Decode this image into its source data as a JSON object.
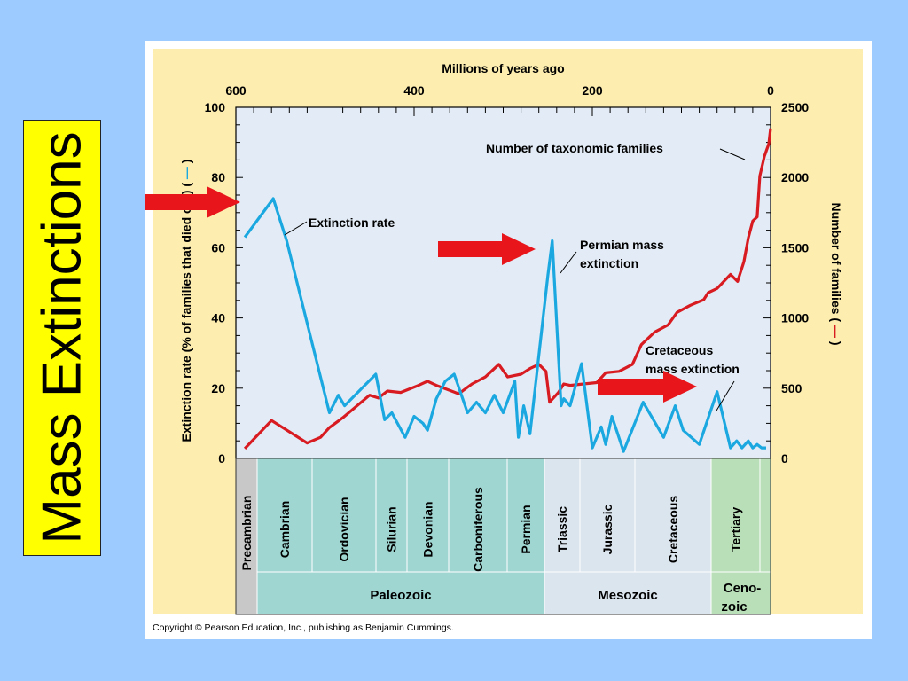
{
  "slide": {
    "title": "Mass Extinctions",
    "copyright": "Copyright © Pearson Education, Inc., publishing as Benjamin Cummings."
  },
  "chart_data": {
    "type": "line",
    "top_axis_label": "Millions of years ago",
    "x_ticks": [
      600,
      400,
      200,
      0
    ],
    "xlim": [
      600,
      0
    ],
    "ylabel_left": "Extinction rate (% of families that died out) (",
    "ylabel_right": "Number of families (",
    "ylim_left": [
      0,
      100
    ],
    "ylim_right": [
      0,
      2500
    ],
    "left_ticks": [
      0,
      20,
      40,
      60,
      80,
      100
    ],
    "right_ticks": [
      0,
      500,
      1000,
      1500,
      2000,
      2500
    ],
    "series": [
      {
        "name": "Extinction rate",
        "axis": "left",
        "color": "#1ba8e0",
        "points": [
          [
            590,
            63
          ],
          [
            558,
            74
          ],
          [
            543,
            62
          ],
          [
            495,
            13
          ],
          [
            485,
            18
          ],
          [
            478,
            15
          ],
          [
            443,
            24
          ],
          [
            433,
            11
          ],
          [
            425,
            13
          ],
          [
            410,
            6
          ],
          [
            400,
            12
          ],
          [
            390,
            10
          ],
          [
            385,
            8
          ],
          [
            375,
            17
          ],
          [
            365,
            22
          ],
          [
            355,
            24
          ],
          [
            340,
            13
          ],
          [
            330,
            16
          ],
          [
            320,
            13
          ],
          [
            310,
            18
          ],
          [
            300,
            13
          ],
          [
            287,
            22
          ],
          [
            283,
            6
          ],
          [
            277,
            15
          ],
          [
            270,
            7
          ],
          [
            250,
            52
          ],
          [
            245,
            62
          ],
          [
            235,
            15
          ],
          [
            232,
            17
          ],
          [
            225,
            15
          ],
          [
            212,
            27
          ],
          [
            200,
            3
          ],
          [
            190,
            9
          ],
          [
            185,
            4
          ],
          [
            178,
            12
          ],
          [
            165,
            2
          ],
          [
            143,
            16
          ],
          [
            120,
            6
          ],
          [
            107,
            15
          ],
          [
            98,
            8
          ],
          [
            80,
            4
          ],
          [
            60,
            19
          ],
          [
            45,
            3
          ],
          [
            38,
            5
          ],
          [
            32,
            3
          ],
          [
            25,
            5
          ],
          [
            20,
            3
          ],
          [
            15,
            4
          ],
          [
            10,
            3
          ],
          [
            5,
            3
          ]
        ]
      },
      {
        "name": "Number of taxonomic families",
        "axis": "right",
        "color": "#d81b21",
        "points": [
          [
            590,
            70
          ],
          [
            560,
            270
          ],
          [
            520,
            110
          ],
          [
            505,
            150
          ],
          [
            495,
            220
          ],
          [
            480,
            290
          ],
          [
            450,
            450
          ],
          [
            440,
            430
          ],
          [
            430,
            480
          ],
          [
            415,
            470
          ],
          [
            395,
            520
          ],
          [
            385,
            550
          ],
          [
            375,
            520
          ],
          [
            350,
            460
          ],
          [
            335,
            530
          ],
          [
            320,
            580
          ],
          [
            305,
            670
          ],
          [
            295,
            580
          ],
          [
            280,
            600
          ],
          [
            270,
            640
          ],
          [
            260,
            670
          ],
          [
            252,
            620
          ],
          [
            248,
            400
          ],
          [
            238,
            470
          ],
          [
            232,
            530
          ],
          [
            225,
            520
          ],
          [
            210,
            530
          ],
          [
            195,
            540
          ],
          [
            185,
            610
          ],
          [
            170,
            620
          ],
          [
            155,
            670
          ],
          [
            145,
            810
          ],
          [
            130,
            900
          ],
          [
            115,
            950
          ],
          [
            105,
            1040
          ],
          [
            90,
            1090
          ],
          [
            75,
            1130
          ],
          [
            70,
            1180
          ],
          [
            60,
            1210
          ],
          [
            45,
            1310
          ],
          [
            37,
            1260
          ],
          [
            30,
            1400
          ],
          [
            25,
            1570
          ],
          [
            20,
            1690
          ],
          [
            15,
            1720
          ],
          [
            12,
            2010
          ],
          [
            7,
            2150
          ],
          [
            2,
            2240
          ],
          [
            0,
            2350
          ]
        ]
      }
    ],
    "annotations": [
      {
        "text": "Extinction rate",
        "color": "#1ba8e0"
      },
      {
        "text": "Number of taxonomic families",
        "color": "#d81b21"
      },
      {
        "text": "Permian mass",
        "text2": "extinction"
      },
      {
        "text": "Cretaceous",
        "text2": "mass extinction"
      }
    ],
    "periods": [
      "Precambrian",
      "Cambrian",
      "Ordovician",
      "Silurian",
      "Devonian",
      "Carboniferous",
      "Permian",
      "Triassic",
      "Jurassic",
      "Cretaceous",
      "Tertiary"
    ],
    "eras": [
      "Paleozoic",
      "Mesozoic",
      "Ceno-",
      "zoic"
    ],
    "colors": {
      "slide_background": "#9dcbff",
      "figure_background": "#fdeeb0",
      "plot_background": "#e3ecf6",
      "paleozoic": "#9fd6d2",
      "mesozoic": "#dbe5ee",
      "cenozoic": "#b8dfb8",
      "precambrian": "#c8c8c8",
      "arrow": "#e8161b"
    }
  }
}
